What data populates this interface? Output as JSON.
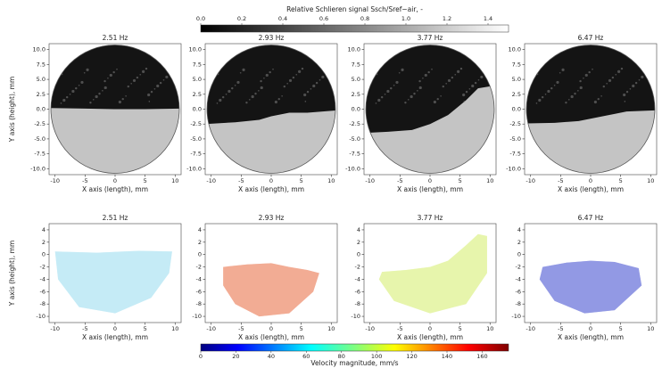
{
  "chart_data": [
    {
      "type": "schlieren",
      "title": "2.51 Hz",
      "xlabel": "X axis (length), mm",
      "ylabel": "Y axis (height), mm",
      "xlim": [
        -11,
        11
      ],
      "ylim": [
        -11,
        11
      ],
      "xticks": [
        -10,
        -5,
        0,
        5,
        10
      ],
      "yticks": [
        {
          "value": 10,
          "label": "10.0"
        },
        7.5,
        {
          "value": 5,
          "label": "5.0"
        },
        2.5,
        {
          "value": 0,
          "label": "0.0"
        },
        -2.5,
        {
          "value": -5,
          "label": "-5.0"
        },
        -7.5,
        {
          "value": -10,
          "label": "-10.0"
        }
      ]
    },
    {
      "type": "schlieren",
      "title": "2.93 Hz",
      "xlabel": "X axis (length), mm",
      "xlim": [
        -11,
        11
      ],
      "ylim": [
        -11,
        11
      ],
      "xticks": [
        -10,
        -5,
        0,
        5,
        10
      ],
      "yticks": [
        {
          "value": 10,
          "label": "10.0"
        },
        7.5,
        {
          "value": 5,
          "label": "5.0"
        },
        2.5,
        {
          "value": 0,
          "label": "0.0"
        },
        -2.5,
        {
          "value": -5,
          "label": "-5.0"
        },
        -7.5,
        {
          "value": -10,
          "label": "-10.0"
        }
      ]
    },
    {
      "type": "schlieren",
      "title": "3.77 Hz",
      "xlabel": "X axis (length), mm",
      "xlim": [
        -11,
        11
      ],
      "ylim": [
        -11,
        11
      ],
      "xticks": [
        -10,
        -5,
        0,
        5,
        10
      ],
      "yticks": [
        {
          "value": 10,
          "label": "10.0"
        },
        7.5,
        {
          "value": 5,
          "label": "5.0"
        },
        2.5,
        {
          "value": 0,
          "label": "0.0"
        },
        -2.5,
        {
          "value": -5,
          "label": "-5.0"
        },
        -7.5,
        {
          "value": -10,
          "label": "-10.0"
        }
      ]
    },
    {
      "type": "schlieren",
      "title": "6.47 Hz",
      "xlabel": "X axis (length), mm",
      "xlim": [
        -11,
        11
      ],
      "ylim": [
        -11,
        11
      ],
      "xticks": [
        -10,
        -5,
        0,
        5,
        10
      ],
      "yticks": [
        {
          "value": 10,
          "label": "10.0"
        },
        7.5,
        {
          "value": 5,
          "label": "5.0"
        },
        2.5,
        {
          "value": 0,
          "label": "0.0"
        },
        -2.5,
        {
          "value": -5,
          "label": "-5.0"
        },
        -7.5,
        {
          "value": -10,
          "label": "-10.0"
        }
      ]
    },
    {
      "type": "velocity",
      "title": "2.51 Hz",
      "xlabel": "X axis (length), mm",
      "ylabel": "Y axis (height), mm",
      "xlim": [
        -11,
        11
      ],
      "ylim": [
        -11,
        5
      ],
      "xticks": [
        -10,
        -5,
        0,
        5,
        10
      ],
      "yticks": [
        4,
        2,
        0,
        -2,
        -4,
        -6,
        -8,
        -10
      ]
    },
    {
      "type": "velocity",
      "title": "2.93 Hz",
      "xlabel": "X axis (length), mm",
      "xlim": [
        -11,
        11
      ],
      "ylim": [
        -11,
        5
      ],
      "xticks": [
        -10,
        -5,
        0,
        5,
        10
      ],
      "yticks": [
        4,
        2,
        0,
        -2,
        -4,
        -6,
        -8,
        -10
      ]
    },
    {
      "type": "velocity",
      "title": "3.77 Hz",
      "xlabel": "X axis (length), mm",
      "xlim": [
        -11,
        11
      ],
      "ylim": [
        -11,
        5
      ],
      "xticks": [
        -10,
        -5,
        0,
        5,
        10
      ],
      "yticks": [
        4,
        2,
        0,
        -2,
        -4,
        -6,
        -8,
        -10
      ]
    },
    {
      "type": "velocity",
      "title": "6.47 Hz",
      "xlabel": "X axis (length), mm",
      "xlim": [
        -11,
        11
      ],
      "ylim": [
        -11,
        5
      ],
      "xticks": [
        -10,
        -5,
        0,
        5,
        10
      ],
      "yticks": [
        4,
        2,
        0,
        -2,
        -4,
        -6,
        -8,
        -10
      ]
    }
  ],
  "colorbars": [
    {
      "label": "Relative Schlieren signal Ssch/Sref−air, -",
      "colormap": "gray",
      "lim": [
        0,
        1.5
      ],
      "ticks": [
        {
          "value": 0,
          "label": "0.0"
        },
        0.2,
        0.4,
        0.6,
        0.8,
        {
          "value": 1,
          "label": "1.0"
        },
        1.2,
        1.4
      ]
    },
    {
      "label": "Velocity magnitude, mm/s",
      "colormap": "jet",
      "lim": [
        0,
        175
      ],
      "ticks": [
        0,
        20,
        40,
        60,
        80,
        100,
        120,
        140,
        160
      ]
    }
  ]
}
